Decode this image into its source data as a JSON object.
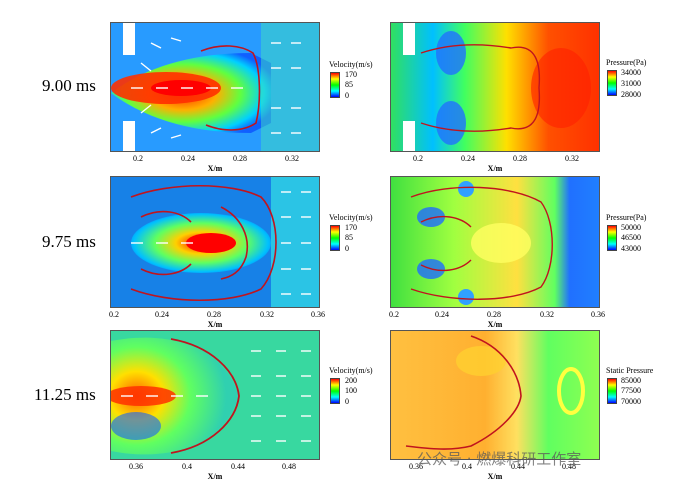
{
  "rows": [
    {
      "time": "9.00 ms",
      "velocity": {
        "legend_title": "Velocity(m/s)",
        "legend_values": [
          "170",
          "85",
          "0"
        ],
        "ticks": [
          "0.2",
          "0.24",
          "0.28",
          "0.32"
        ],
        "xlabel": "X/m"
      },
      "pressure": {
        "legend_title": "Pressure(Pa)",
        "legend_values": [
          "34000",
          "31000",
          "28000"
        ],
        "ticks": [
          "0.2",
          "0.24",
          "0.28",
          "0.32"
        ],
        "xlabel": "X/m"
      }
    },
    {
      "time": "9.75 ms",
      "velocity": {
        "legend_title": "Velocity(m/s)",
        "legend_values": [
          "170",
          "85",
          "0"
        ],
        "ticks": [
          "0.2",
          "0.24",
          "0.28",
          "0.32",
          "0.36"
        ],
        "xlabel": "X/m"
      },
      "pressure": {
        "legend_title": "Pressure(Pa)",
        "legend_values": [
          "50000",
          "46500",
          "43000"
        ],
        "ticks": [
          "0.2",
          "0.24",
          "0.28",
          "0.32",
          "0.36"
        ],
        "xlabel": "X/m"
      }
    },
    {
      "time": "11.25 ms",
      "velocity": {
        "legend_title": "Velocity(m/s)",
        "legend_values": [
          "200",
          "100",
          "0"
        ],
        "ticks": [
          "0.36",
          "0.4",
          "0.44",
          "0.48"
        ],
        "xlabel": "X/m"
      },
      "pressure": {
        "legend_title": "Static Pressure",
        "legend_values": [
          "85000",
          "77500",
          "70000"
        ],
        "ticks": [
          "0.36",
          "0.4",
          "0.44",
          "0.48"
        ],
        "xlabel": "X/m"
      }
    }
  ],
  "watermark": "公众号 · 燃爆科研工作室",
  "colors": {
    "rainbow": [
      "#ff0000",
      "#ffff00",
      "#00ff00",
      "#00ffff",
      "#0000ff"
    ],
    "flame_front": "#c0141e"
  }
}
